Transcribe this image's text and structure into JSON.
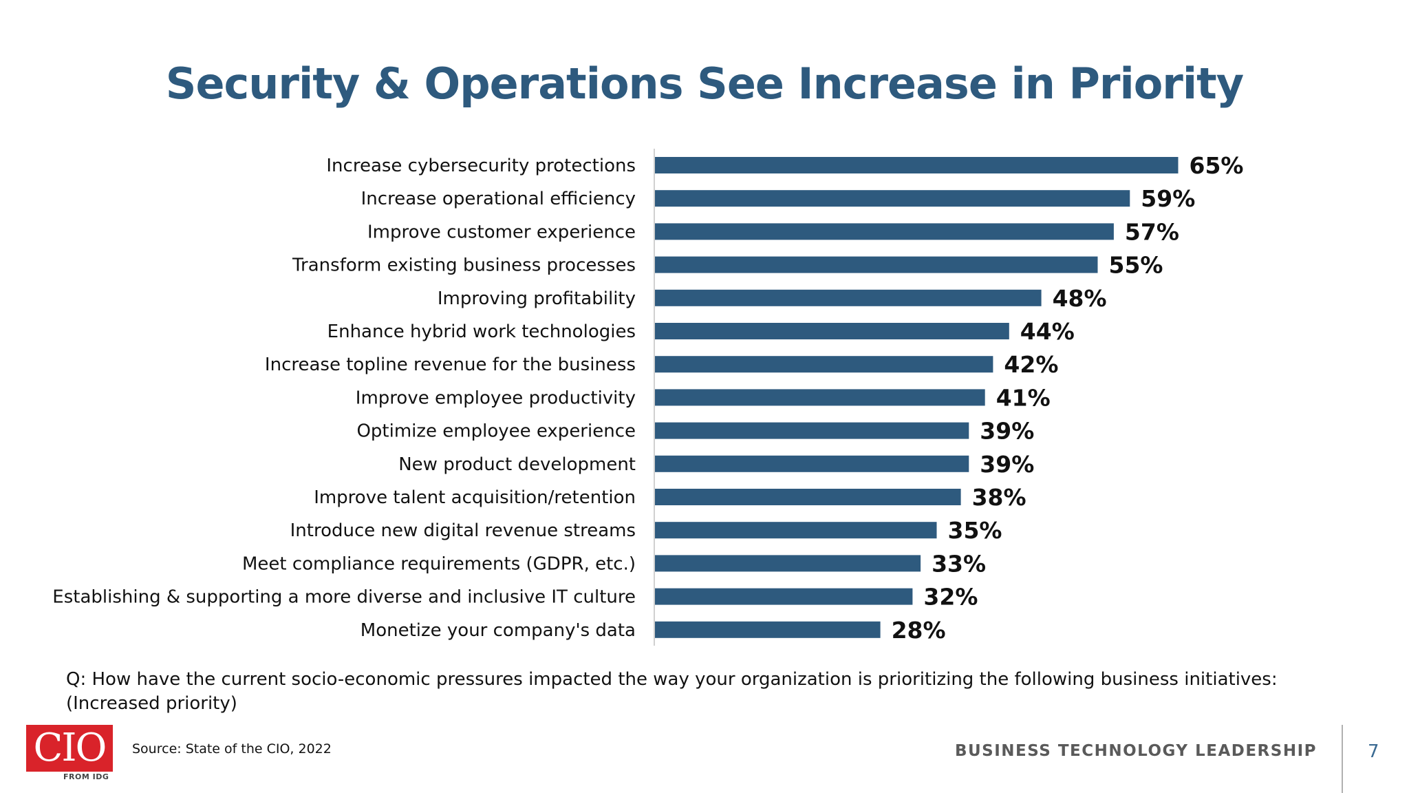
{
  "slide": {
    "title": "Security & Operations See Increase in Priority",
    "question": "Q: How have the current socio-economic pressures impacted the way your organization is prioritizing the following business initiatives: (Increased priority)",
    "source": "Source: State of the CIO, 2022",
    "tagline": "BUSINESS TECHNOLOGY LEADERSHIP",
    "page_number": "7",
    "logo": {
      "text": "CIO",
      "subtext": "FROM IDG"
    }
  },
  "colors": {
    "bar": "#2e5a7e",
    "title": "#2e5a7e",
    "logo_bg": "#d9232a"
  },
  "chart_data": {
    "type": "bar",
    "orientation": "horizontal",
    "title": "",
    "xlabel": "",
    "ylabel": "",
    "xlim": [
      0,
      100
    ],
    "grid": false,
    "legend": "none",
    "categories": [
      "Increase cybersecurity protections",
      "Increase operational efficiency",
      "Improve customer experience",
      "Transform existing business processes",
      "Improving profitability",
      "Enhance hybrid work technologies",
      "Increase topline revenue for the business",
      "Improve employee productivity",
      "Optimize employee experience",
      "New product development",
      "Improve talent acquisition/retention",
      "Introduce new digital revenue streams",
      "Meet compliance requirements (GDPR, etc.)",
      "Establishing & supporting a more diverse and inclusive IT culture",
      "Monetize your company's data"
    ],
    "values": [
      65,
      59,
      57,
      55,
      48,
      44,
      42,
      41,
      39,
      39,
      38,
      35,
      33,
      32,
      28
    ],
    "value_labels": [
      "65%",
      "59%",
      "57%",
      "55%",
      "48%",
      "44%",
      "42%",
      "41%",
      "39%",
      "39%",
      "38%",
      "35%",
      "33%",
      "32%",
      "28%"
    ]
  }
}
